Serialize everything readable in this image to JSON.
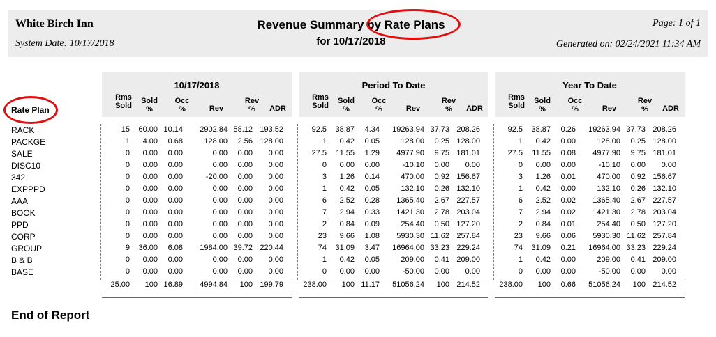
{
  "header": {
    "hotel": "White Birch Inn",
    "system_date": "System Date:  10/17/2018",
    "title": "Revenue Summary by Rate Plans",
    "subtitle": "for 10/17/2018",
    "page": "Page:  1 of 1",
    "generated": "Generated on:  02/24/2021 11:34 AM"
  },
  "sections": [
    {
      "title": "10/17/2018"
    },
    {
      "title": "Period To Date"
    },
    {
      "title": "Year To Date"
    }
  ],
  "columns": {
    "rms": [
      "Rms",
      "Sold"
    ],
    "sold": [
      "Sold",
      "%"
    ],
    "occ": [
      "Occ",
      "%"
    ],
    "rev": [
      "Rev"
    ],
    "revp": [
      "Rev",
      "%"
    ],
    "adr": [
      "ADR"
    ]
  },
  "rate_plan_label": "Rate Plan",
  "rows": [
    {
      "plan": "RACK",
      "d": [
        "15",
        "60.00",
        "10.14",
        "2902.84",
        "58.12",
        "193.52"
      ],
      "p": [
        "92.5",
        "38.87",
        "4.34",
        "19263.94",
        "37.73",
        "208.26"
      ],
      "y": [
        "92.5",
        "38.87",
        "0.26",
        "19263.94",
        "37.73",
        "208.26"
      ]
    },
    {
      "plan": "PACKGE",
      "d": [
        "1",
        "4.00",
        "0.68",
        "128.00",
        "2.56",
        "128.00"
      ],
      "p": [
        "1",
        "0.42",
        "0.05",
        "128.00",
        "0.25",
        "128.00"
      ],
      "y": [
        "1",
        "0.42",
        "0.00",
        "128.00",
        "0.25",
        "128.00"
      ]
    },
    {
      "plan": "SALE",
      "d": [
        "0",
        "0.00",
        "0.00",
        "0.00",
        "0.00",
        "0.00"
      ],
      "p": [
        "27.5",
        "11.55",
        "1.29",
        "4977.90",
        "9.75",
        "181.01"
      ],
      "y": [
        "27.5",
        "11.55",
        "0.08",
        "4977.90",
        "9.75",
        "181.01"
      ]
    },
    {
      "plan": "DISC10",
      "d": [
        "0",
        "0.00",
        "0.00",
        "0.00",
        "0.00",
        "0.00"
      ],
      "p": [
        "0",
        "0.00",
        "0.00",
        "-10.10",
        "0.00",
        "0.00"
      ],
      "y": [
        "0",
        "0.00",
        "0.00",
        "-10.10",
        "0.00",
        "0.00"
      ]
    },
    {
      "plan": "342",
      "d": [
        "0",
        "0.00",
        "0.00",
        "-20.00",
        "0.00",
        "0.00"
      ],
      "p": [
        "3",
        "1.26",
        "0.14",
        "470.00",
        "0.92",
        "156.67"
      ],
      "y": [
        "3",
        "1.26",
        "0.01",
        "470.00",
        "0.92",
        "156.67"
      ]
    },
    {
      "plan": "EXPPPD",
      "d": [
        "0",
        "0.00",
        "0.00",
        "0.00",
        "0.00",
        "0.00"
      ],
      "p": [
        "1",
        "0.42",
        "0.05",
        "132.10",
        "0.26",
        "132.10"
      ],
      "y": [
        "1",
        "0.42",
        "0.00",
        "132.10",
        "0.26",
        "132.10"
      ]
    },
    {
      "plan": "AAA",
      "d": [
        "0",
        "0.00",
        "0.00",
        "0.00",
        "0.00",
        "0.00"
      ],
      "p": [
        "6",
        "2.52",
        "0.28",
        "1365.40",
        "2.67",
        "227.57"
      ],
      "y": [
        "6",
        "2.52",
        "0.02",
        "1365.40",
        "2.67",
        "227.57"
      ]
    },
    {
      "plan": "BOOK",
      "d": [
        "0",
        "0.00",
        "0.00",
        "0.00",
        "0.00",
        "0.00"
      ],
      "p": [
        "7",
        "2.94",
        "0.33",
        "1421.30",
        "2.78",
        "203.04"
      ],
      "y": [
        "7",
        "2.94",
        "0.02",
        "1421.30",
        "2.78",
        "203.04"
      ]
    },
    {
      "plan": "PPD",
      "d": [
        "0",
        "0.00",
        "0.00",
        "0.00",
        "0.00",
        "0.00"
      ],
      "p": [
        "2",
        "0.84",
        "0.09",
        "254.40",
        "0.50",
        "127.20"
      ],
      "y": [
        "2",
        "0.84",
        "0.01",
        "254.40",
        "0.50",
        "127.20"
      ]
    },
    {
      "plan": "CORP",
      "d": [
        "0",
        "0.00",
        "0.00",
        "0.00",
        "0.00",
        "0.00"
      ],
      "p": [
        "23",
        "9.66",
        "1.08",
        "5930.30",
        "11.62",
        "257.84"
      ],
      "y": [
        "23",
        "9.66",
        "0.06",
        "5930.30",
        "11.62",
        "257.84"
      ]
    },
    {
      "plan": "GROUP",
      "d": [
        "9",
        "36.00",
        "6.08",
        "1984.00",
        "39.72",
        "220.44"
      ],
      "p": [
        "74",
        "31.09",
        "3.47",
        "16964.00",
        "33.23",
        "229.24"
      ],
      "y": [
        "74",
        "31.09",
        "0.21",
        "16964.00",
        "33.23",
        "229.24"
      ]
    },
    {
      "plan": "B & B",
      "d": [
        "0",
        "0.00",
        "0.00",
        "0.00",
        "0.00",
        "0.00"
      ],
      "p": [
        "1",
        "0.42",
        "0.05",
        "209.00",
        "0.41",
        "209.00"
      ],
      "y": [
        "1",
        "0.42",
        "0.00",
        "209.00",
        "0.41",
        "209.00"
      ]
    },
    {
      "plan": "BASE",
      "d": [
        "0",
        "0.00",
        "0.00",
        "0.00",
        "0.00",
        "0.00"
      ],
      "p": [
        "0",
        "0.00",
        "0.00",
        "-50.00",
        "0.00",
        "0.00"
      ],
      "y": [
        "0",
        "0.00",
        "0.00",
        "-50.00",
        "0.00",
        "0.00"
      ]
    }
  ],
  "totals": {
    "d": [
      "25.00",
      "100",
      "16.89",
      "4994.84",
      "100",
      "199.79"
    ],
    "p": [
      "238.00",
      "100",
      "11.17",
      "51056.24",
      "100",
      "214.52"
    ],
    "y": [
      "238.00",
      "100",
      "0.66",
      "51056.24",
      "100",
      "214.52"
    ]
  },
  "footer": "End of Report",
  "annotation_color": "#e01010"
}
